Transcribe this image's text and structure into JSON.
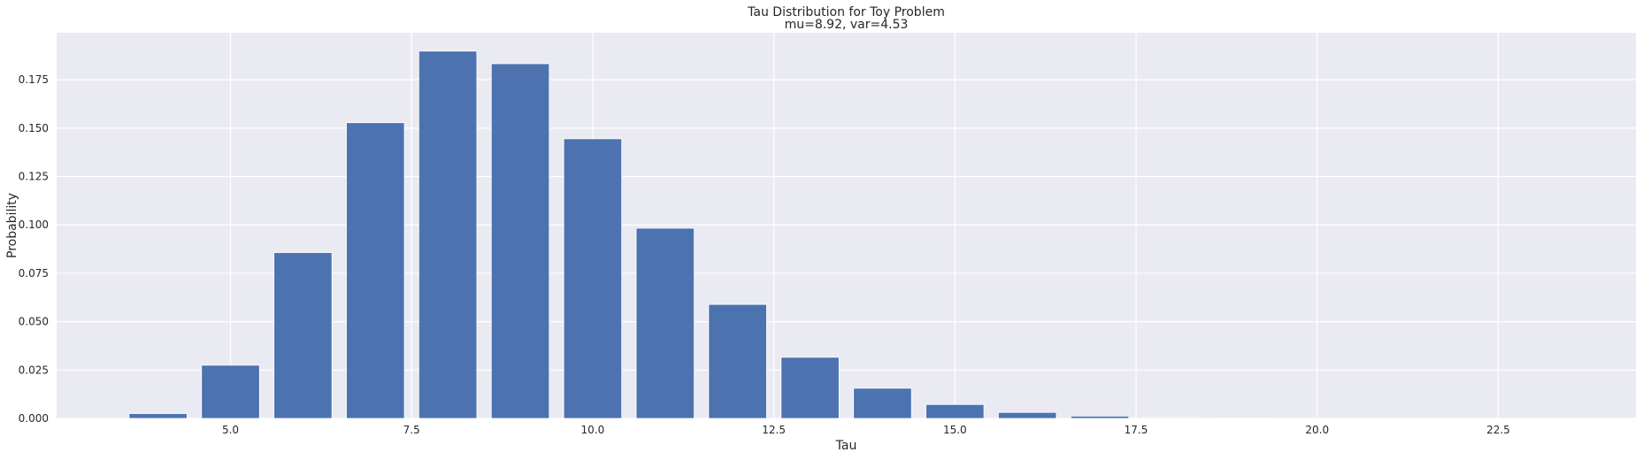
{
  "chart_data": {
    "type": "bar",
    "title": "Tau Distribution for Toy Problem",
    "subtitle": "mu=8.92, var=4.53",
    "xlabel": "Tau",
    "ylabel": "Probability",
    "x": [
      4,
      5,
      6,
      7,
      8,
      9,
      10,
      11,
      12,
      13,
      14,
      15,
      16,
      17,
      18,
      19,
      20,
      21,
      22,
      23
    ],
    "values": [
      0.0025,
      0.0275,
      0.0857,
      0.1528,
      0.1898,
      0.1833,
      0.1445,
      0.0983,
      0.0589,
      0.0316,
      0.0156,
      0.0072,
      0.0031,
      0.0012,
      0.0004,
      0.0001,
      3e-05,
      1e-05,
      0.0,
      0.0
    ],
    "bar_width": 0.8,
    "xlim": [
      2.6,
      24.4
    ],
    "ylim": [
      0,
      0.1993
    ],
    "xticks": [
      {
        "value": 5.0,
        "label": "5.0"
      },
      {
        "value": 7.5,
        "label": "7.5"
      },
      {
        "value": 10.0,
        "label": "10.0"
      },
      {
        "value": 12.5,
        "label": "12.5"
      },
      {
        "value": 15.0,
        "label": "15.0"
      },
      {
        "value": 17.5,
        "label": "17.5"
      },
      {
        "value": 20.0,
        "label": "20.0"
      },
      {
        "value": 22.5,
        "label": "22.5"
      }
    ],
    "yticks": [
      {
        "value": 0.0,
        "label": "0.000"
      },
      {
        "value": 0.025,
        "label": "0.025"
      },
      {
        "value": 0.05,
        "label": "0.050"
      },
      {
        "value": 0.075,
        "label": "0.075"
      },
      {
        "value": 0.1,
        "label": "0.100"
      },
      {
        "value": 0.125,
        "label": "0.125"
      },
      {
        "value": 0.15,
        "label": "0.150"
      },
      {
        "value": 0.175,
        "label": "0.175"
      }
    ],
    "grid": true,
    "colors": {
      "bar": "#4c72b0",
      "plot_background": "#eaeaf2",
      "grid": "#ffffff",
      "text": "#262626"
    }
  }
}
